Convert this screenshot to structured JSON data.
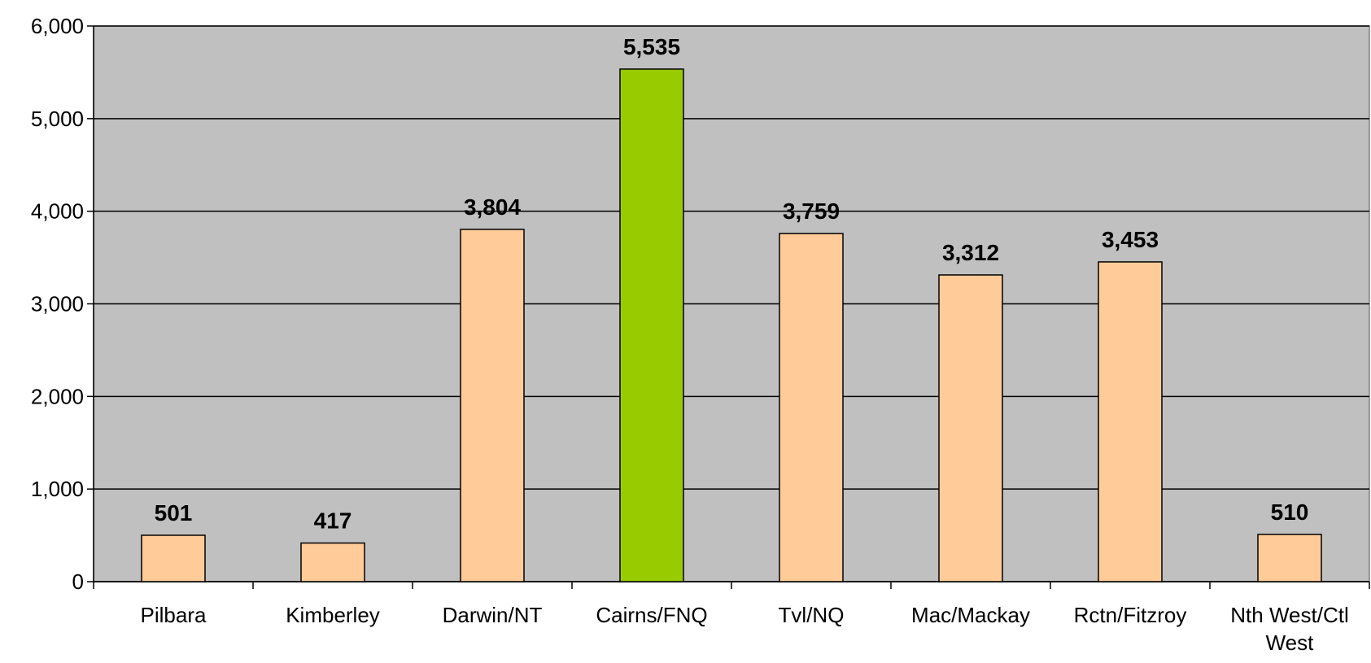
{
  "chart_data": {
    "type": "bar",
    "categories": [
      "Pilbara",
      "Kimberley",
      "Darwin/NT",
      "Cairns/FNQ",
      "Tvl/NQ",
      "Mac/Mackay",
      "Rctn/Fitzroy",
      "Nth West/Ctl West"
    ],
    "values": [
      501,
      417,
      3804,
      5535,
      3759,
      3312,
      3453,
      510
    ],
    "value_labels": [
      "501",
      "417",
      "3,804",
      "5,535",
      "3,759",
      "3,312",
      "3,453",
      "510"
    ],
    "colors": [
      "#ffcc99",
      "#ffcc99",
      "#ffcc99",
      "#99cc00",
      "#ffcc99",
      "#ffcc99",
      "#ffcc99",
      "#ffcc99"
    ],
    "ylim": [
      0,
      6000
    ],
    "yticks": [
      0,
      {
        "value": 1000,
        "label": "1,000"
      },
      {
        "value": 2000,
        "label": "2,000"
      },
      {
        "value": 3000,
        "label": "3,000"
      },
      {
        "value": 4000,
        "label": "4,000"
      },
      {
        "value": 5000,
        "label": "5,000"
      },
      {
        "value": 6000,
        "label": "6,000"
      }
    ],
    "grid": true
  }
}
